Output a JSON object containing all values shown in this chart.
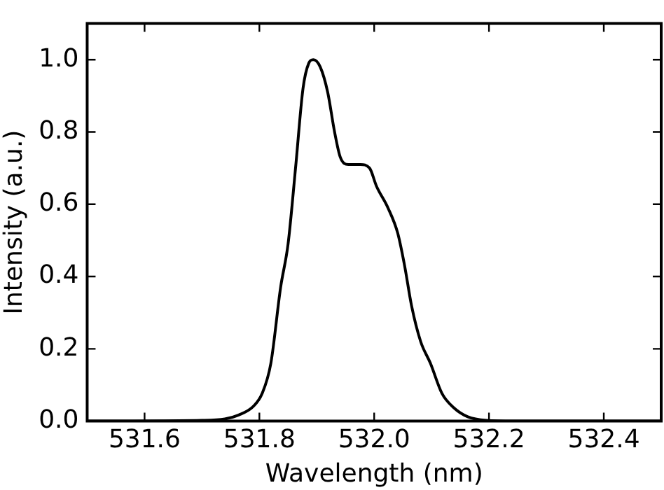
{
  "chart_data": {
    "type": "line",
    "xlabel": "Wavelength (nm)",
    "ylabel": "Intensity (a.u.)",
    "xlim": [
      531.5,
      532.5
    ],
    "ylim": [
      0,
      1.1
    ],
    "xticks": [
      531.6,
      531.8,
      {
        "value": 532,
        "label": "532.0"
      },
      532.2,
      532.4
    ],
    "yticks": [
      {
        "value": 0,
        "label": "0.0"
      },
      0.2,
      0.4,
      0.6,
      0.8,
      {
        "value": 1,
        "label": "1.0"
      }
    ],
    "grid": false,
    "legend": false,
    "marker": "none",
    "line_style": "solid",
    "series": [
      {
        "color": "#000000",
        "x": [
          531.5,
          531.7,
          531.74,
          531.764,
          531.789,
          531.805,
          531.82,
          531.837,
          531.85,
          531.863,
          531.876,
          531.886,
          531.894,
          531.906,
          531.919,
          531.931,
          531.941,
          531.955,
          531.976,
          531.992,
          532.004,
          532.024,
          532.041,
          532.053,
          532.065,
          532.081,
          532.098,
          532.118,
          532.138,
          532.163,
          532.195,
          532.244,
          532.5
        ],
        "values": [
          0,
          0.002,
          0.006,
          0.017,
          0.04,
          0.077,
          0.16,
          0.37,
          0.49,
          0.7,
          0.92,
          0.99,
          1.0,
          0.98,
          0.91,
          0.8,
          0.73,
          0.71,
          0.71,
          0.7,
          0.65,
          0.59,
          0.52,
          0.43,
          0.32,
          0.22,
          0.16,
          0.077,
          0.038,
          0.012,
          0.002,
          0,
          0
        ]
      }
    ]
  }
}
